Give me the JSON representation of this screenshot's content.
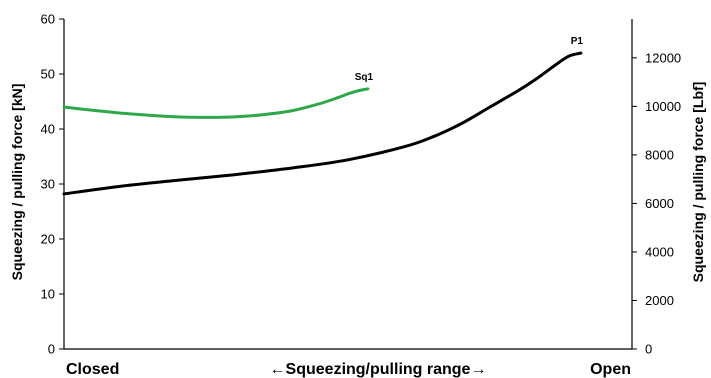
{
  "chart_data": {
    "type": "line",
    "xlabel": "←Squeezing/pulling range→",
    "x_start_label": "Closed",
    "x_end_label": "Open",
    "ylabel": "Squeezing / pulling force [kN]",
    "y2label": "Squeezing / pulling force [Lbf]",
    "xlim": [
      0,
      100
    ],
    "ylim": [
      0,
      60
    ],
    "y2lim": [
      0,
      13600
    ],
    "yticks": [
      0,
      10,
      20,
      30,
      40,
      50,
      60
    ],
    "y2ticks": [
      0,
      2000,
      4000,
      6000,
      8000,
      10000,
      12000
    ],
    "grid": false,
    "legend": "none",
    "series": [
      {
        "name": "Sq1",
        "color": "#2ea84a",
        "x": [
          0,
          5,
          10,
          15,
          20,
          25,
          30,
          35,
          40,
          45,
          48.5,
          50,
          52,
          53.5
        ],
        "y": [
          44.0,
          43.4,
          42.9,
          42.5,
          42.2,
          42.1,
          42.2,
          42.6,
          43.3,
          44.6,
          45.8,
          46.4,
          47.0,
          47.3
        ]
      },
      {
        "name": "P1",
        "color": "#000000",
        "x": [
          0,
          10,
          20,
          30,
          40,
          50,
          60,
          65,
          70,
          75,
          80,
          83,
          85,
          87,
          89,
          91
        ],
        "y": [
          28.2,
          29.6,
          30.7,
          31.7,
          32.9,
          34.4,
          36.8,
          38.6,
          41.0,
          44.0,
          47.0,
          49.0,
          50.5,
          52.0,
          53.3,
          53.8
        ]
      }
    ]
  }
}
